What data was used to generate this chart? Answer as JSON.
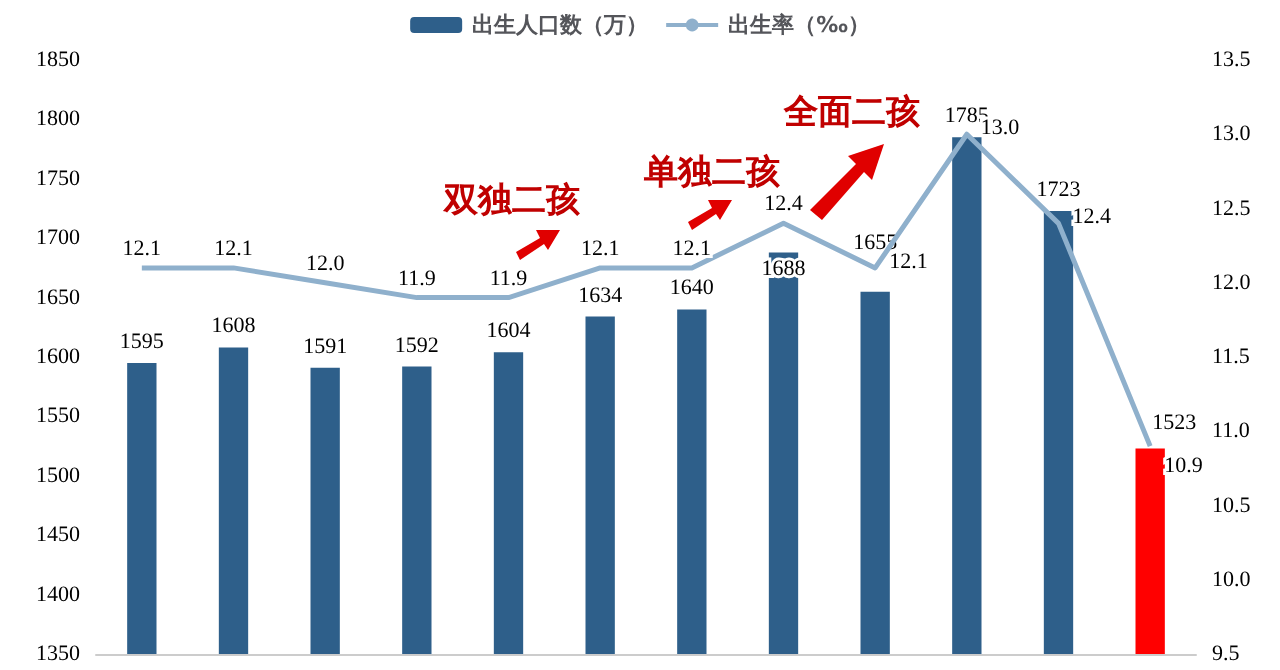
{
  "chart_data": {
    "type": "bar",
    "categories": [
      null,
      null,
      null,
      null,
      null,
      null,
      null,
      null,
      null,
      null,
      null,
      null
    ],
    "series": [
      {
        "name": "出生人口数（万）",
        "type": "bar",
        "color": "#2e5f8a",
        "colors": [
          "#2e5f8a",
          "#2e5f8a",
          "#2e5f8a",
          "#2e5f8a",
          "#2e5f8a",
          "#2e5f8a",
          "#2e5f8a",
          "#2e5f8a",
          "#2e5f8a",
          "#2e5f8a",
          "#2e5f8a",
          "#ff0000"
        ],
        "values": [
          1595,
          1608,
          1591,
          1592,
          1604,
          1634,
          1640,
          1688,
          1655,
          1785,
          1723,
          1523
        ]
      },
      {
        "name": "出生率（‰）",
        "type": "line",
        "axis": "y2",
        "color": "#8fb0cc",
        "values": [
          12.1,
          12.1,
          12.0,
          11.9,
          11.9,
          12.1,
          12.1,
          12.4,
          12.1,
          13.0,
          12.4,
          10.9
        ],
        "value_labels": [
          "12.1",
          "12.1",
          "12.0",
          "11.9",
          "11.9",
          "12.1",
          "12.1",
          "12.4",
          "12.1",
          "13.0",
          "12.4",
          "10.9"
        ]
      }
    ],
    "ylim": [
      1350,
      1850
    ],
    "yticks": [
      1350,
      1400,
      1450,
      1500,
      1550,
      1600,
      1650,
      1700,
      1750,
      1800,
      1850
    ],
    "y2lim": [
      9.5,
      13.5
    ],
    "y2ticks": [
      9.5,
      {
        "value": 10,
        "label": "10.0"
      },
      10.5,
      {
        "value": 11,
        "label": "11.0"
      },
      11.5,
      {
        "value": 12,
        "label": "12.0"
      },
      12.5,
      {
        "value": 13,
        "label": "13.0"
      },
      13.5
    ],
    "annotations": [
      "双独二孩",
      "单独二孩",
      "全面二孩"
    ],
    "data_labels": true,
    "grid": false,
    "legend": "top",
    "marker": "none",
    "line_style": "solid"
  }
}
